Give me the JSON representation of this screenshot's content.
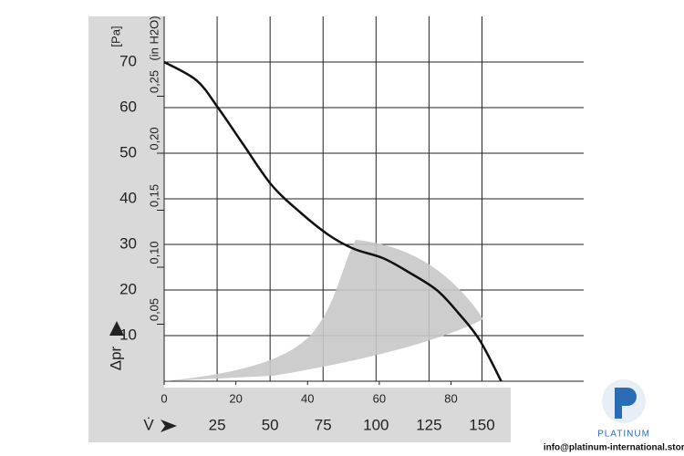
{
  "chart_data": {
    "type": "line",
    "y_label": "Δpr",
    "y_unit": "[Pa]",
    "y2_unit": "(in H2O)",
    "x2_label": "V̇",
    "x": [
      0,
      9,
      15,
      22,
      30,
      38,
      46,
      53,
      61,
      68,
      76,
      82,
      88,
      94
    ],
    "series": [
      {
        "color": "#111111",
        "values": [
          70,
          66,
          60,
          52,
          43,
          37,
          32,
          29,
          27,
          24,
          20,
          15,
          9,
          0
        ]
      }
    ],
    "xlim": [
      0,
      117
    ],
    "xticks": [
      0,
      20,
      40,
      60,
      80
    ],
    "x2lim": [
      0,
      198
    ],
    "x2ticks": [
      25,
      50,
      75,
      100,
      125,
      150
    ],
    "ylim": [
      0,
      80
    ],
    "yticks": [
      10,
      20,
      30,
      40,
      50,
      60,
      70
    ],
    "y2lim": [
      0,
      0.32
    ],
    "y2ticks": [
      {
        "value": 0.05,
        "label": "0,05"
      },
      {
        "value": 0.1,
        "label": "0,10"
      },
      {
        "value": 0.15,
        "label": "0,15"
      },
      {
        "value": 0.2,
        "label": "0,20"
      },
      {
        "value": 0.25,
        "label": "0,25"
      }
    ],
    "grid": true
  },
  "watermark": {
    "brand": "PLATINUM",
    "contact": "info@platinum-international.store"
  }
}
